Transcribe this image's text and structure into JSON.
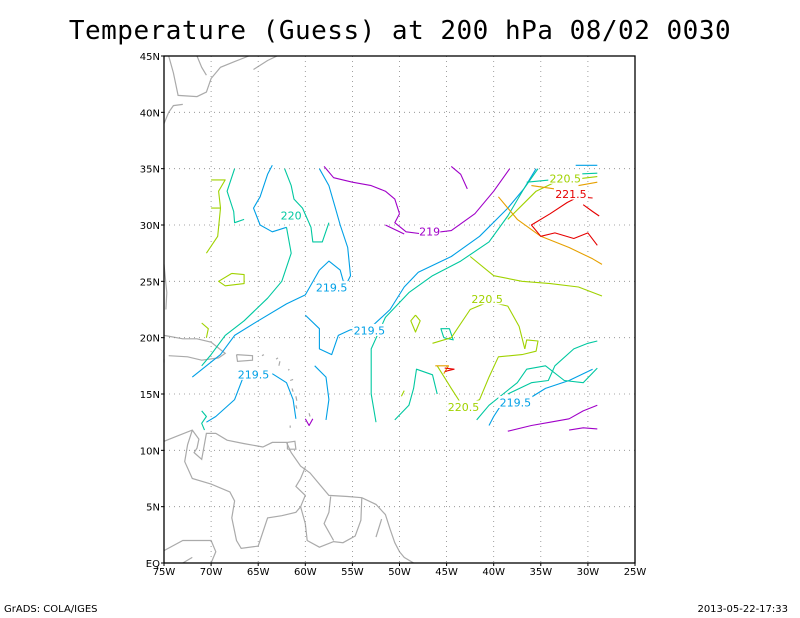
{
  "title": "Temperature (Guess) at 200 hPa 08/02 0030",
  "footer": {
    "credit": "GrADS: COLA/IGES",
    "timestamp": "2013-05-22-17:33"
  },
  "map": {
    "lon_range": [
      -75,
      -25
    ],
    "lat_range": [
      0,
      45
    ],
    "lon_ticks": [
      -75,
      -70,
      -65,
      -60,
      -55,
      -50,
      -45,
      -40,
      -35,
      -30,
      -25
    ],
    "lat_ticks": [
      0,
      5,
      10,
      15,
      20,
      25,
      30,
      35,
      40,
      45
    ],
    "lon_tick_labels": [
      "75W",
      "70W",
      "65W",
      "60W",
      "55W",
      "50W",
      "45W",
      "40W",
      "35W",
      "30W",
      "25W"
    ],
    "lat_tick_labels": [
      "EQ",
      "5N",
      "10N",
      "15N",
      "20N",
      "25N",
      "30N",
      "35N",
      "40N",
      "45N"
    ],
    "grid": true,
    "coastline_color": "#aaaaaa",
    "contour_colors": {
      "219": "#a000c8",
      "219.5": "#00a0e6",
      "220": "#00c8a0",
      "220.5": "#a0d200",
      "221": "#e6a000",
      "221.5": "#e60000"
    },
    "contour_labels": [
      {
        "text": "220",
        "lon": -61.5,
        "lat": 30.8,
        "level": "220"
      },
      {
        "text": "219",
        "lon": -46.8,
        "lat": 29.4,
        "level": "219"
      },
      {
        "text": "219.5",
        "lon": -57.2,
        "lat": 24.4,
        "level": "219.5"
      },
      {
        "text": "219.5",
        "lon": -53.2,
        "lat": 20.6,
        "level": "219.5"
      },
      {
        "text": "219.5",
        "lon": -65.5,
        "lat": 16.7,
        "level": "219.5"
      },
      {
        "text": "220.5",
        "lon": -40.7,
        "lat": 23.4,
        "level": "220.5"
      },
      {
        "text": "220.5",
        "lon": -43.2,
        "lat": 13.8,
        "level": "220.5"
      },
      {
        "text": "219.5",
        "lon": -37.7,
        "lat": 14.2,
        "level": "219.5"
      },
      {
        "text": "220.5",
        "lon": -32.4,
        "lat": 34.1,
        "level": "220.5"
      },
      {
        "text": "221.5",
        "lon": -31.8,
        "lat": 32.7,
        "level": "221.5"
      }
    ]
  }
}
